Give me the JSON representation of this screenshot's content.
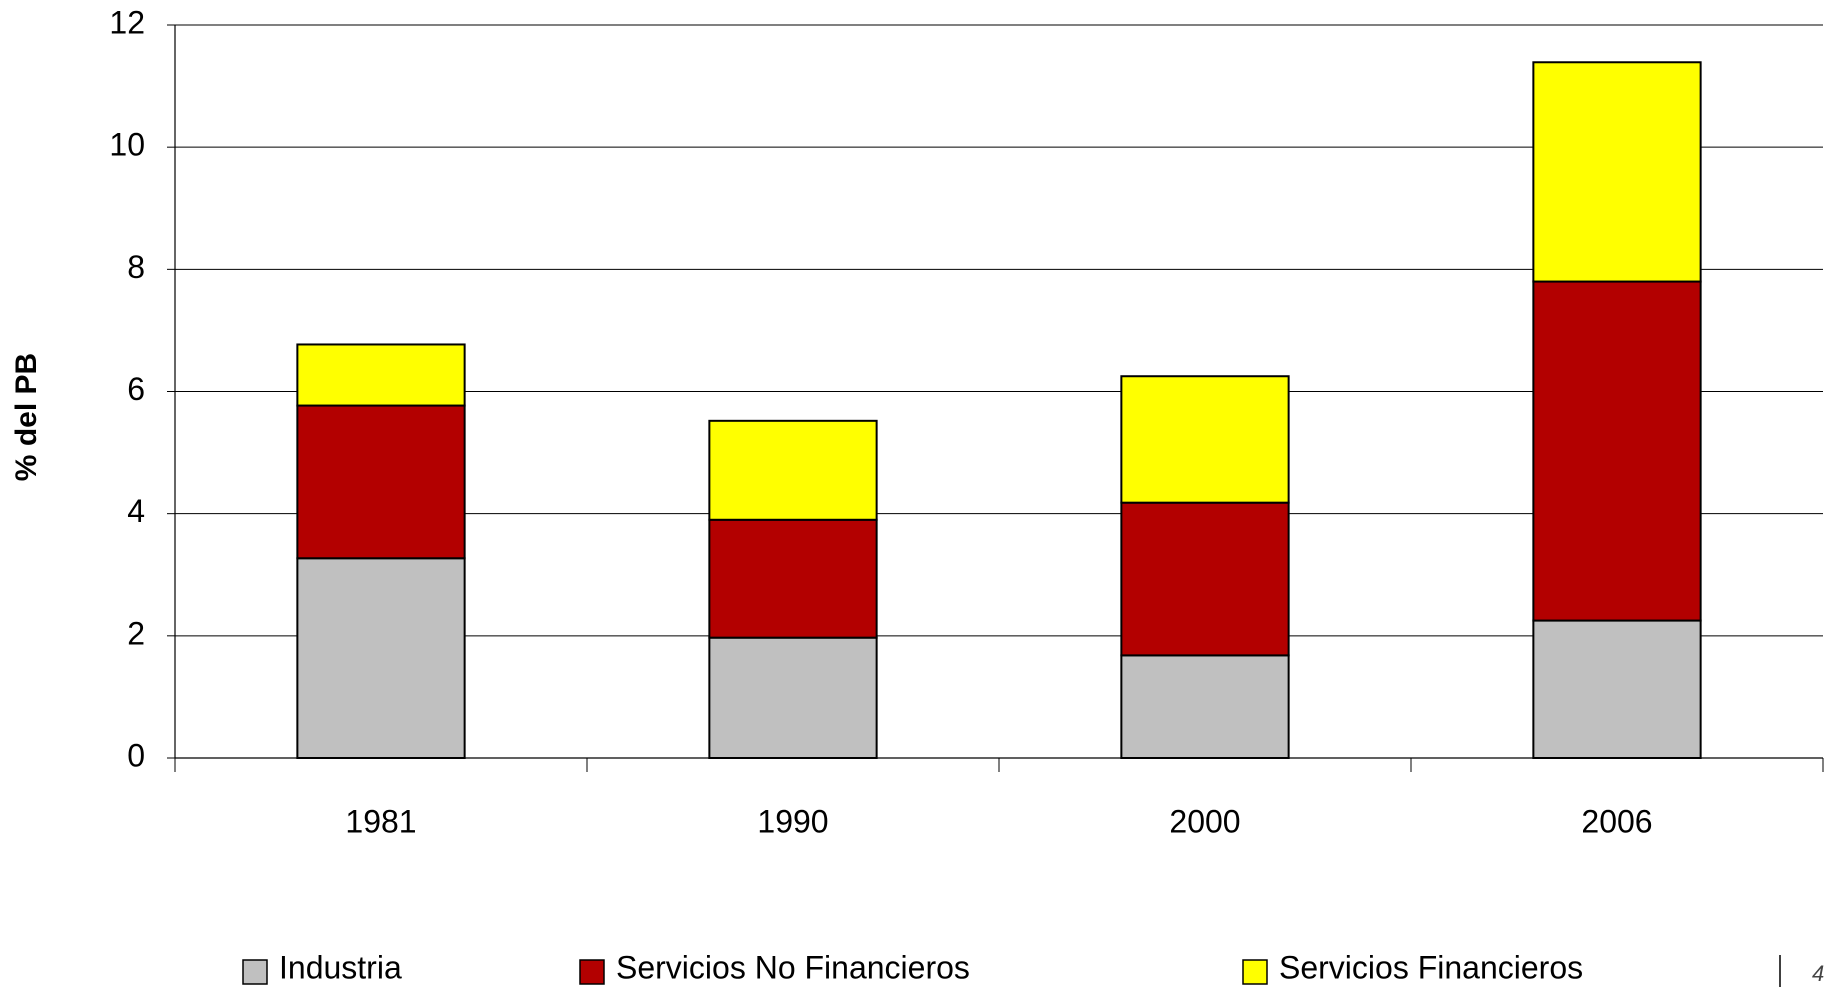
{
  "chart_data": {
    "type": "bar",
    "stacked": true,
    "y_label": "% del PB",
    "categories": [
      "1981",
      "1990",
      "2000",
      "2006"
    ],
    "series": [
      {
        "name": "Industria",
        "color": "#c0c0c0",
        "values": [
          3.27,
          1.97,
          1.68,
          2.25
        ]
      },
      {
        "name": "Servicios No Financieros",
        "color": "#b30000",
        "values": [
          2.5,
          1.93,
          2.5,
          5.55
        ]
      },
      {
        "name": "Servicios Financieros",
        "color": "#ffff00",
        "values": [
          1.0,
          1.62,
          2.07,
          3.59
        ]
      }
    ],
    "ylim": [
      0,
      12
    ],
    "yticks": [
      0,
      2,
      4,
      6,
      8,
      10,
      12
    ],
    "grid": true,
    "legend": "bottom"
  },
  "page_number": "4"
}
